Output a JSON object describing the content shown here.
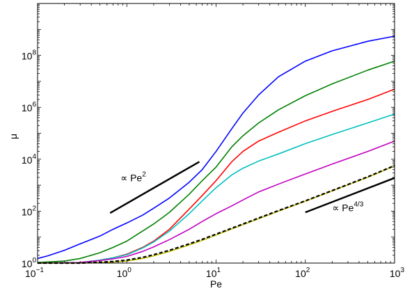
{
  "chart_data": {
    "type": "line",
    "xlabel": "Pe",
    "ylabel": "μ",
    "xscale": "log",
    "yscale": "log",
    "xlim": [
      0.1,
      1000
    ],
    "ylim": [
      1,
      10000000000
    ],
    "grid": false,
    "x_ticks": [
      {
        "value": 0.1,
        "base": "10",
        "exp": "−1"
      },
      {
        "value": 1,
        "base": "10",
        "exp": "0"
      },
      {
        "value": 10,
        "base": "10",
        "exp": "1"
      },
      {
        "value": 100,
        "base": "10",
        "exp": "2"
      },
      {
        "value": 1000,
        "base": "10",
        "exp": "3"
      }
    ],
    "y_ticks": [
      {
        "value": 1,
        "base": "10",
        "exp": "0"
      },
      {
        "value": 100,
        "base": "10",
        "exp": "2"
      },
      {
        "value": 10000,
        "base": "10",
        "exp": "4"
      },
      {
        "value": 1000000,
        "base": "10",
        "exp": "6"
      },
      {
        "value": 100000000,
        "base": "10",
        "exp": "8"
      }
    ],
    "series": [
      {
        "color": "#0000ff",
        "style": "solid",
        "points": [
          [
            0.1,
            1.5
          ],
          [
            0.13,
            1.9
          ],
          [
            0.2,
            3.1
          ],
          [
            0.3,
            5.5
          ],
          [
            0.5,
            11
          ],
          [
            0.7,
            20
          ],
          [
            1,
            35
          ],
          [
            1.5,
            70
          ],
          [
            2,
            130
          ],
          [
            3,
            320
          ],
          [
            5,
            1300
          ],
          [
            7,
            4000
          ],
          [
            10,
            20000
          ],
          [
            15,
            150000
          ],
          [
            20,
            600000
          ],
          [
            30,
            3000000
          ],
          [
            50,
            15000000
          ],
          [
            100,
            60000000
          ],
          [
            200,
            150000000
          ],
          [
            500,
            350000000
          ],
          [
            1000,
            550000000
          ]
        ]
      },
      {
        "color": "#008000",
        "style": "solid",
        "points": [
          [
            0.1,
            1.05
          ],
          [
            0.2,
            1.2
          ],
          [
            0.3,
            1.5
          ],
          [
            0.5,
            2.5
          ],
          [
            0.7,
            4
          ],
          [
            1,
            7
          ],
          [
            2,
            32
          ],
          [
            3,
            90
          ],
          [
            5,
            450
          ],
          [
            7,
            1500
          ],
          [
            10,
            5000
          ],
          [
            15,
            30000
          ],
          [
            20,
            80000
          ],
          [
            30,
            250000
          ],
          [
            50,
            800000
          ],
          [
            100,
            2800000
          ],
          [
            200,
            8000000
          ],
          [
            500,
            27000000
          ],
          [
            1000,
            60000000
          ]
        ]
      },
      {
        "color": "#ff0000",
        "style": "solid",
        "points": [
          [
            0.1,
            1
          ],
          [
            0.3,
            1.05
          ],
          [
            0.5,
            1.3
          ],
          [
            0.7,
            1.6
          ],
          [
            1,
            2.2
          ],
          [
            1.5,
            4
          ],
          [
            2,
            7
          ],
          [
            3,
            20
          ],
          [
            5,
            120
          ],
          [
            7,
            400
          ],
          [
            10,
            1500
          ],
          [
            15,
            8000
          ],
          [
            20,
            20000
          ],
          [
            30,
            50000
          ],
          [
            50,
            110000
          ],
          [
            100,
            300000
          ],
          [
            200,
            700000
          ],
          [
            500,
            2000000
          ],
          [
            1000,
            5000000
          ]
        ]
      },
      {
        "color": "#00bfbf",
        "style": "solid",
        "points": [
          [
            0.1,
            1
          ],
          [
            0.3,
            1.05
          ],
          [
            0.5,
            1.3
          ],
          [
            0.7,
            1.6
          ],
          [
            1,
            2.1
          ],
          [
            1.5,
            3.8
          ],
          [
            2,
            6.5
          ],
          [
            3,
            17
          ],
          [
            5,
            80
          ],
          [
            7,
            250
          ],
          [
            10,
            800
          ],
          [
            15,
            2500
          ],
          [
            20,
            4500
          ],
          [
            30,
            8500
          ],
          [
            50,
            16000
          ],
          [
            100,
            40000
          ],
          [
            200,
            90000
          ],
          [
            500,
            250000
          ],
          [
            1000,
            550000
          ]
        ]
      },
      {
        "color": "#bf00bf",
        "style": "solid",
        "points": [
          [
            0.1,
            1
          ],
          [
            0.3,
            1.05
          ],
          [
            0.5,
            1.25
          ],
          [
            0.7,
            1.45
          ],
          [
            1,
            1.8
          ],
          [
            1.5,
            2.8
          ],
          [
            2,
            4.2
          ],
          [
            3,
            8
          ],
          [
            5,
            20
          ],
          [
            7,
            40
          ],
          [
            10,
            80
          ],
          [
            15,
            160
          ],
          [
            20,
            270
          ],
          [
            30,
            550
          ],
          [
            50,
            1100
          ],
          [
            100,
            2700
          ],
          [
            200,
            6500
          ],
          [
            500,
            20000
          ],
          [
            1000,
            50000
          ]
        ]
      },
      {
        "color": "#bfbf00",
        "style": "solid",
        "points": [
          [
            0.1,
            1
          ],
          [
            0.3,
            1
          ],
          [
            0.5,
            1.05
          ],
          [
            0.7,
            1.1
          ],
          [
            1,
            1.2
          ],
          [
            1.5,
            1.5
          ],
          [
            2,
            1.9
          ],
          [
            3,
            2.8
          ],
          [
            5,
            5
          ],
          [
            7,
            7.5
          ],
          [
            10,
            12
          ],
          [
            20,
            30
          ],
          [
            50,
            100
          ],
          [
            100,
            240
          ],
          [
            200,
            600
          ],
          [
            500,
            2000
          ],
          [
            1000,
            5500
          ]
        ]
      },
      {
        "color": "#000000",
        "style": "dashed",
        "points": [
          [
            0.1,
            1
          ],
          [
            0.3,
            1
          ],
          [
            0.5,
            1.08
          ],
          [
            0.7,
            1.15
          ],
          [
            1,
            1.3
          ],
          [
            1.5,
            1.65
          ],
          [
            2,
            2.1
          ],
          [
            3,
            3.1
          ],
          [
            5,
            5.5
          ],
          [
            7,
            8.2
          ],
          [
            10,
            13
          ],
          [
            20,
            32
          ],
          [
            50,
            105
          ],
          [
            100,
            250
          ],
          [
            200,
            620
          ],
          [
            500,
            2100
          ],
          [
            1000,
            5700
          ]
        ]
      }
    ],
    "reference_lines": [
      {
        "slope_label": "Pe",
        "slope_exp": "2",
        "start": [
          0.65,
          85
        ],
        "end": [
          6.5,
          8000
        ]
      },
      {
        "slope_label": "Pe",
        "slope_exp": "4/3",
        "start": [
          100,
          90
        ],
        "end": [
          1000,
          1900
        ]
      }
    ],
    "annotations": [
      {
        "prefix": "∝ ",
        "text": "Pe",
        "exp": "2",
        "at": [
          0.85,
          1400
        ]
      },
      {
        "prefix": "∝ ",
        "text": "Pe",
        "exp": "4/3",
        "at": [
          200,
          100
        ]
      }
    ]
  }
}
